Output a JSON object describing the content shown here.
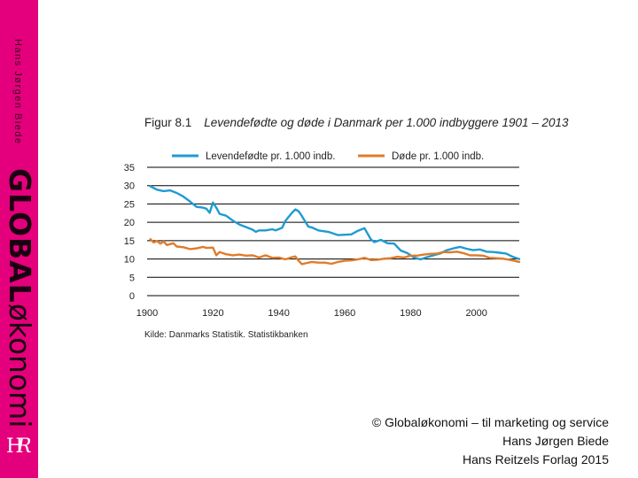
{
  "sidebar": {
    "author": "Hans Jørgen Biede",
    "brand_bold": "GLOBAL",
    "brand_light": "økonomi",
    "logo": "HR-monogram-icon"
  },
  "figure": {
    "number": "Figur 8.1",
    "caption": "Levendefødte og døde i Danmark per 1.000 indbyggere 1901 – 2013",
    "source": "Kilde: Danmarks Statistik. Statistikbanken"
  },
  "chart_data": {
    "type": "line",
    "title": "Levendefødte og døde i Danmark per 1.000 indbyggere 1901 – 2013",
    "xlabel": "",
    "ylabel": "",
    "xlim": [
      1900,
      2013
    ],
    "ylim": [
      0,
      35
    ],
    "xticks": [
      "1900",
      "1920",
      "1940",
      "1960",
      "1980",
      "2000"
    ],
    "yticks": [
      "35",
      "30",
      "25",
      "20",
      "15",
      "10",
      "5",
      "0"
    ],
    "grid": "horizontal",
    "legend": "top",
    "series": [
      {
        "name": "Levendefødte pr. 1.000 indb.",
        "color": "#1f9bd1",
        "points": [
          [
            1901,
            29.8
          ],
          [
            1903,
            28.9
          ],
          [
            1905,
            28.5
          ],
          [
            1907,
            28.7
          ],
          [
            1909,
            28.0
          ],
          [
            1911,
            27.0
          ],
          [
            1913,
            25.7
          ],
          [
            1915,
            24.2
          ],
          [
            1917,
            24.0
          ],
          [
            1918,
            23.7
          ],
          [
            1919,
            22.6
          ],
          [
            1920,
            25.4
          ],
          [
            1921,
            24.0
          ],
          [
            1922,
            22.3
          ],
          [
            1924,
            21.8
          ],
          [
            1926,
            20.5
          ],
          [
            1928,
            19.4
          ],
          [
            1930,
            18.7
          ],
          [
            1932,
            18.0
          ],
          [
            1933,
            17.4
          ],
          [
            1934,
            17.8
          ],
          [
            1936,
            17.8
          ],
          [
            1938,
            18.1
          ],
          [
            1939,
            17.8
          ],
          [
            1941,
            18.5
          ],
          [
            1942,
            20.4
          ],
          [
            1944,
            22.6
          ],
          [
            1945,
            23.5
          ],
          [
            1946,
            23.0
          ],
          [
            1947,
            21.7
          ],
          [
            1948,
            20.2
          ],
          [
            1949,
            18.8
          ],
          [
            1950,
            18.6
          ],
          [
            1952,
            17.8
          ],
          [
            1955,
            17.4
          ],
          [
            1958,
            16.5
          ],
          [
            1960,
            16.6
          ],
          [
            1962,
            16.7
          ],
          [
            1964,
            17.7
          ],
          [
            1966,
            18.4
          ],
          [
            1968,
            15.3
          ],
          [
            1969,
            14.6
          ],
          [
            1971,
            15.2
          ],
          [
            1973,
            14.3
          ],
          [
            1975,
            14.2
          ],
          [
            1977,
            12.3
          ],
          [
            1979,
            11.6
          ],
          [
            1981,
            10.4
          ],
          [
            1983,
            9.9
          ],
          [
            1985,
            10.5
          ],
          [
            1987,
            11.0
          ],
          [
            1989,
            11.5
          ],
          [
            1991,
            12.4
          ],
          [
            1993,
            12.9
          ],
          [
            1995,
            13.3
          ],
          [
            1997,
            12.8
          ],
          [
            1999,
            12.4
          ],
          [
            2001,
            12.6
          ],
          [
            2003,
            12.0
          ],
          [
            2005,
            11.9
          ],
          [
            2007,
            11.7
          ],
          [
            2009,
            11.5
          ],
          [
            2011,
            10.6
          ],
          [
            2013,
            10.0
          ]
        ]
      },
      {
        "name": "Døde pr. 1.000 indb.",
        "color": "#e07b2a",
        "points": [
          [
            1901,
            15.4
          ],
          [
            1902,
            14.5
          ],
          [
            1903,
            14.9
          ],
          [
            1904,
            14.2
          ],
          [
            1905,
            14.8
          ],
          [
            1906,
            13.8
          ],
          [
            1908,
            14.3
          ],
          [
            1909,
            13.4
          ],
          [
            1911,
            13.2
          ],
          [
            1913,
            12.7
          ],
          [
            1915,
            12.9
          ],
          [
            1917,
            13.3
          ],
          [
            1918,
            13.0
          ],
          [
            1920,
            13.1
          ],
          [
            1921,
            11.0
          ],
          [
            1922,
            11.9
          ],
          [
            1924,
            11.3
          ],
          [
            1926,
            11.0
          ],
          [
            1928,
            11.2
          ],
          [
            1930,
            10.9
          ],
          [
            1932,
            11.0
          ],
          [
            1934,
            10.4
          ],
          [
            1936,
            11.0
          ],
          [
            1938,
            10.3
          ],
          [
            1940,
            10.4
          ],
          [
            1942,
            9.9
          ],
          [
            1944,
            10.5
          ],
          [
            1945,
            10.7
          ],
          [
            1946,
            9.5
          ],
          [
            1947,
            8.6
          ],
          [
            1948,
            8.8
          ],
          [
            1950,
            9.2
          ],
          [
            1952,
            9.0
          ],
          [
            1954,
            9.0
          ],
          [
            1956,
            8.7
          ],
          [
            1958,
            9.2
          ],
          [
            1960,
            9.5
          ],
          [
            1962,
            9.6
          ],
          [
            1964,
            9.9
          ],
          [
            1966,
            10.3
          ],
          [
            1968,
            9.7
          ],
          [
            1970,
            9.8
          ],
          [
            1972,
            10.1
          ],
          [
            1974,
            10.2
          ],
          [
            1976,
            10.6
          ],
          [
            1978,
            10.4
          ],
          [
            1980,
            10.9
          ],
          [
            1982,
            10.9
          ],
          [
            1984,
            11.2
          ],
          [
            1986,
            11.4
          ],
          [
            1988,
            11.5
          ],
          [
            1990,
            11.9
          ],
          [
            1992,
            11.8
          ],
          [
            1994,
            12.0
          ],
          [
            1996,
            11.6
          ],
          [
            1998,
            11.0
          ],
          [
            2000,
            11.0
          ],
          [
            2002,
            10.9
          ],
          [
            2004,
            10.3
          ],
          [
            2006,
            10.2
          ],
          [
            2008,
            10.1
          ],
          [
            2010,
            9.8
          ],
          [
            2012,
            9.4
          ],
          [
            2013,
            9.2
          ]
        ]
      }
    ]
  },
  "footer": {
    "line1": "© Globaløkonomi – til marketing og service",
    "line2": "Hans Jørgen Biede",
    "line3": "Hans Reitzels Forlag 2015"
  }
}
